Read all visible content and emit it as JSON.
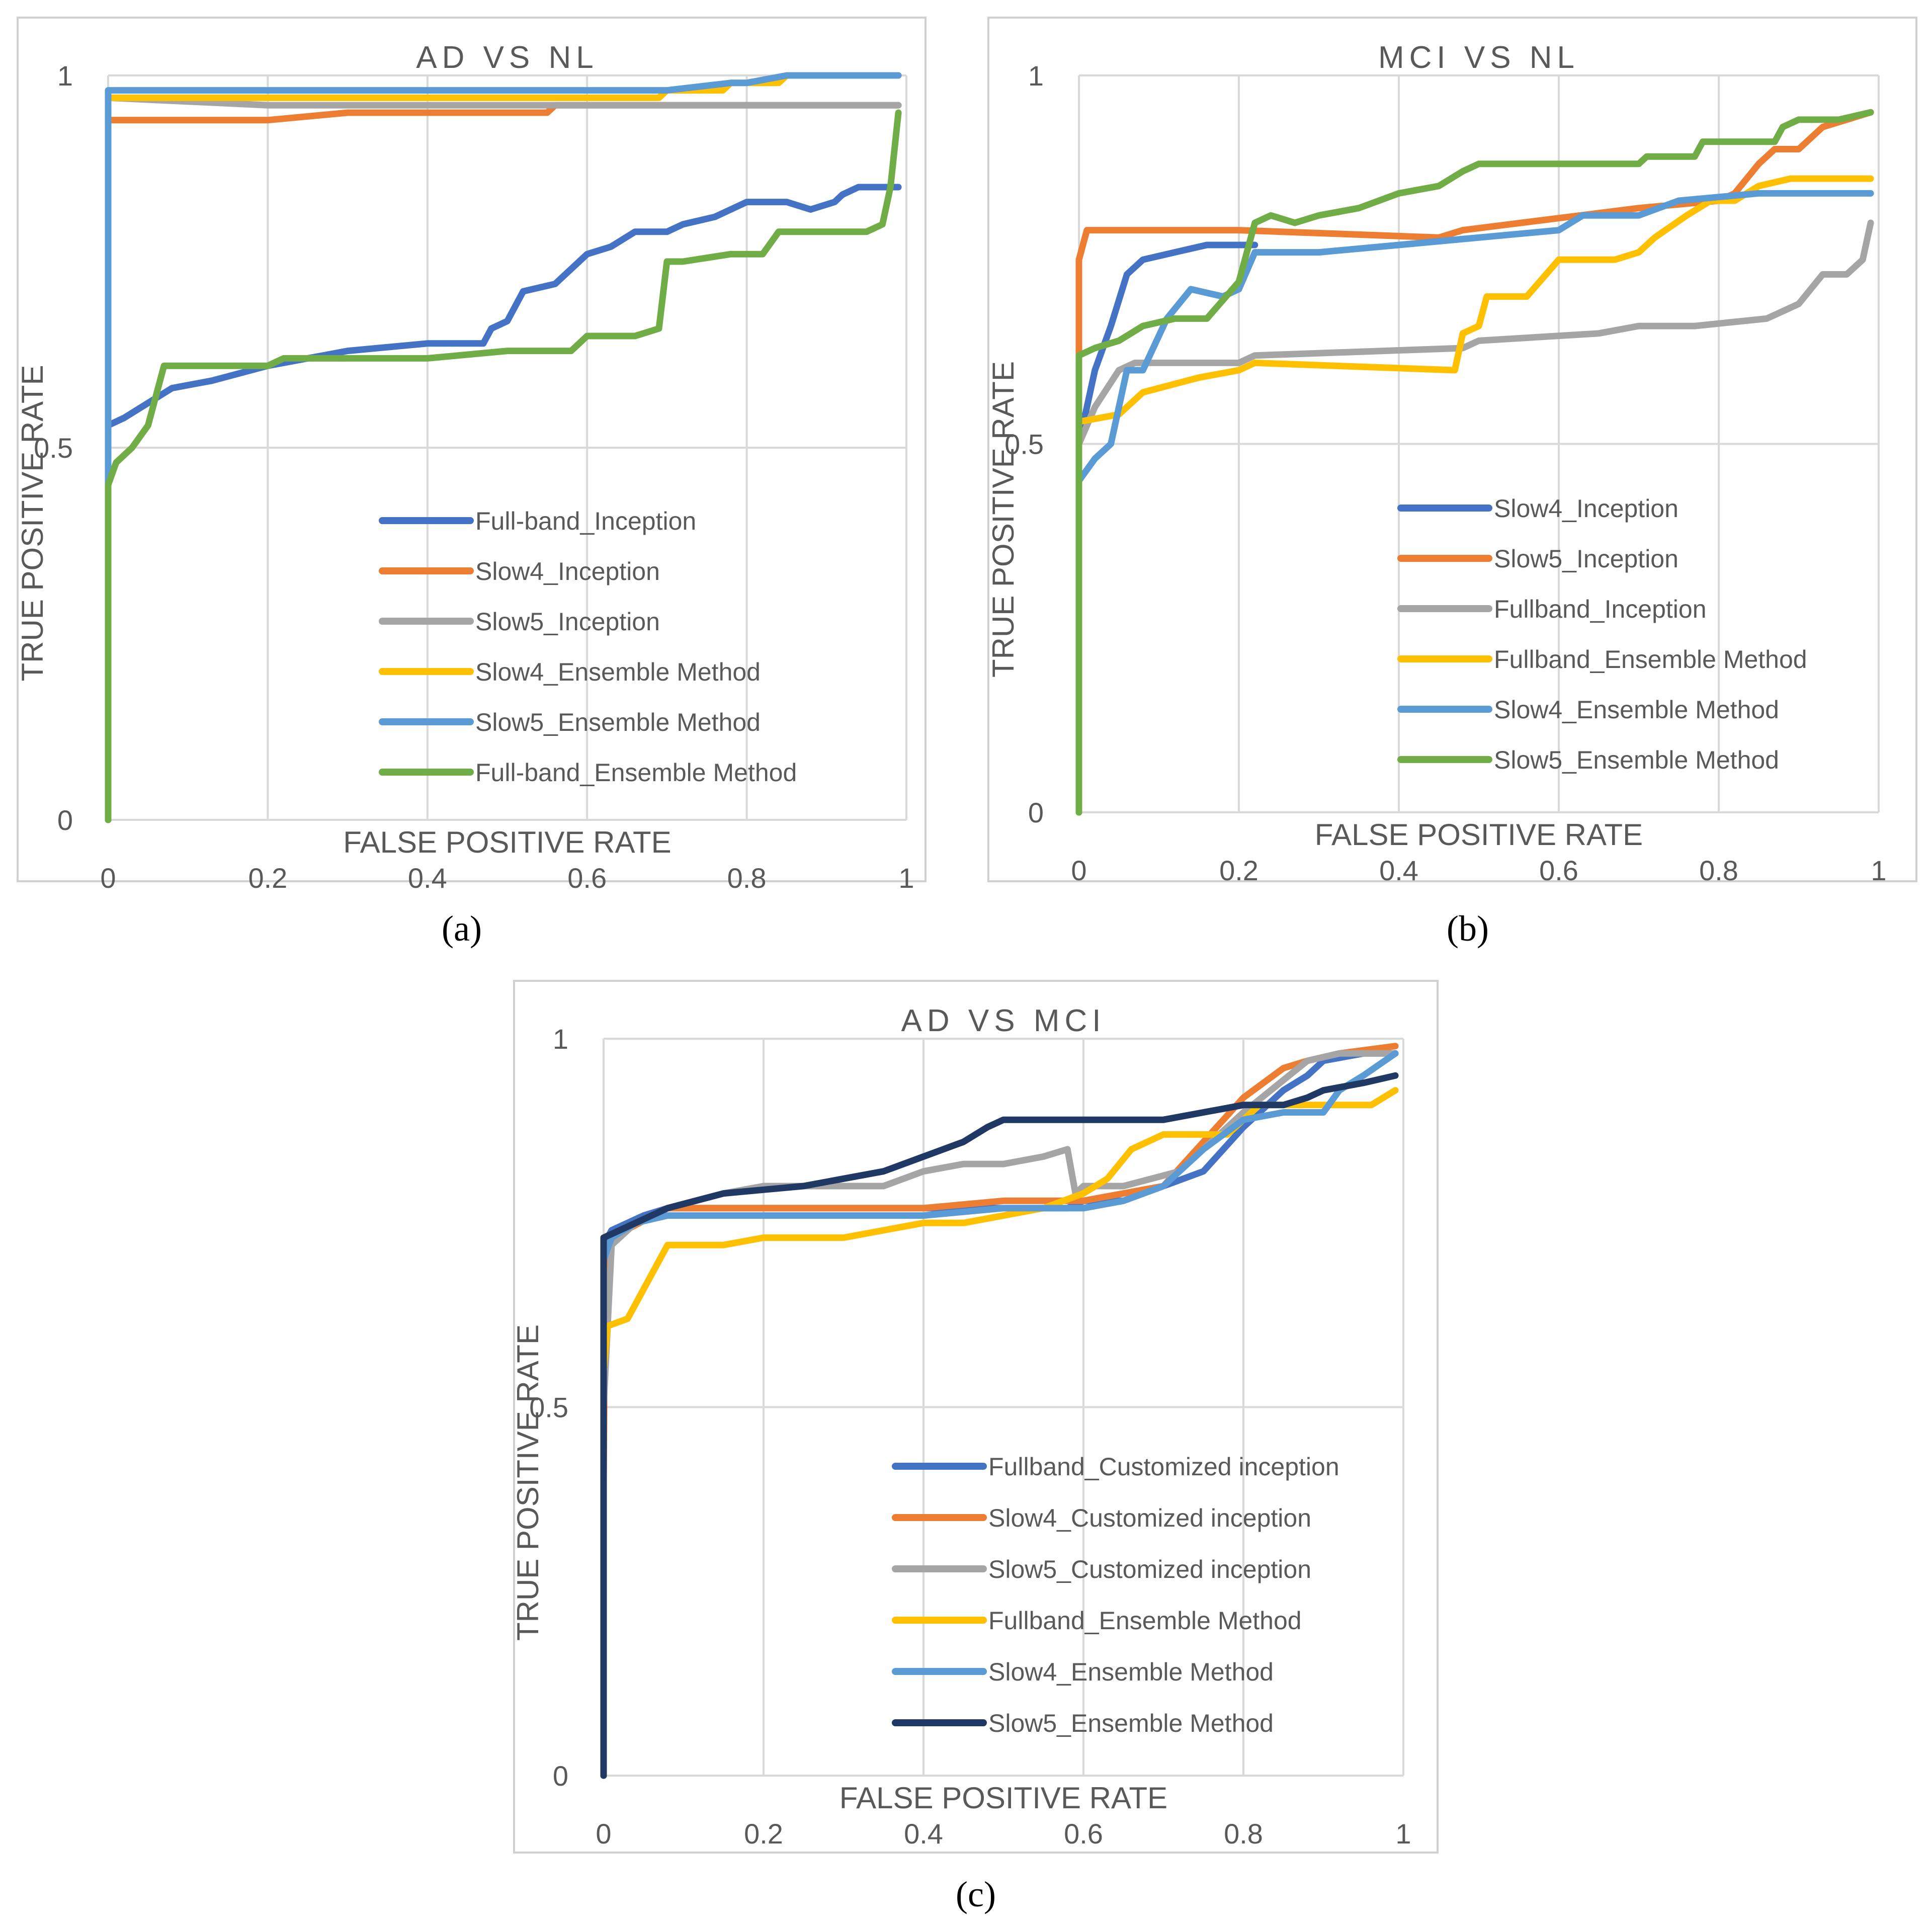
{
  "colors": {
    "frame": "#d0d0d0",
    "grid": "#d9d9d9",
    "text": "#595959",
    "caption": "#000000"
  },
  "chart_data": [
    {
      "panel_id": "a",
      "caption": "(a)",
      "type": "line",
      "title": "AD VS NL",
      "xlabel": "FALSE POSITIVE RATE",
      "ylabel": "TRUE POSITIVE RATE",
      "xlim": [
        0,
        1
      ],
      "ylim": [
        0,
        1
      ],
      "xticks": [
        "0",
        "0.2",
        "0.4",
        "0.6",
        "0.8",
        "1"
      ],
      "yticks": [
        "0",
        "0.5",
        "1"
      ],
      "legend_position": "bottom-right",
      "series": [
        {
          "name": "Full-band_Inception",
          "color": "#4472c4",
          "x": [
            0,
            0,
            0.02,
            0.05,
            0.08,
            0.13,
            0.2,
            0.3,
            0.4,
            0.47,
            0.48,
            0.5,
            0.52,
            0.56,
            0.58,
            0.6,
            0.63,
            0.66,
            0.7,
            0.72,
            0.76,
            0.78,
            0.8,
            0.85,
            0.88,
            0.91,
            0.92,
            0.94,
            0.97,
            0.99
          ],
          "y": [
            0,
            0.53,
            0.54,
            0.56,
            0.58,
            0.59,
            0.61,
            0.63,
            0.64,
            0.64,
            0.66,
            0.67,
            0.71,
            0.72,
            0.74,
            0.76,
            0.77,
            0.79,
            0.79,
            0.8,
            0.81,
            0.82,
            0.83,
            0.83,
            0.82,
            0.83,
            0.84,
            0.85,
            0.85,
            0.85
          ]
        },
        {
          "name": "Slow4_Inception",
          "color": "#ed7d31",
          "x": [
            0,
            0,
            0.2,
            0.3,
            0.55,
            0.56,
            0.6,
            0.99
          ],
          "y": [
            0,
            0.94,
            0.94,
            0.95,
            0.95,
            0.96,
            0.96,
            0.96
          ]
        },
        {
          "name": "Slow5_Inception",
          "color": "#a5a5a5",
          "x": [
            0,
            0,
            0.2,
            0.55,
            0.57,
            0.99
          ],
          "y": [
            0,
            0.97,
            0.96,
            0.96,
            0.96,
            0.96
          ]
        },
        {
          "name": "Slow4_Ensemble Method",
          "color": "#ffc000",
          "x": [
            0,
            0,
            0.5,
            0.69,
            0.7,
            0.77,
            0.78,
            0.84,
            0.85,
            0.99
          ],
          "y": [
            0,
            0.97,
            0.97,
            0.97,
            0.98,
            0.98,
            0.99,
            0.99,
            1,
            1
          ]
        },
        {
          "name": "Slow5_Ensemble Method",
          "color": "#5b9bd5",
          "x": [
            0,
            0,
            0.55,
            0.7,
            0.78,
            0.8,
            0.85,
            0.99
          ],
          "y": [
            0,
            0.98,
            0.98,
            0.98,
            0.99,
            0.99,
            1,
            1
          ]
        },
        {
          "name": "Full-band_Ensemble Method",
          "color": "#70ad47",
          "x": [
            0,
            0,
            0.01,
            0.03,
            0.05,
            0.06,
            0.07,
            0.2,
            0.22,
            0.3,
            0.4,
            0.5,
            0.53,
            0.58,
            0.6,
            0.66,
            0.69,
            0.7,
            0.72,
            0.78,
            0.82,
            0.84,
            0.9,
            0.95,
            0.97,
            0.98,
            0.99
          ],
          "y": [
            0,
            0.45,
            0.48,
            0.5,
            0.53,
            0.57,
            0.61,
            0.61,
            0.62,
            0.62,
            0.62,
            0.63,
            0.63,
            0.63,
            0.65,
            0.65,
            0.66,
            0.75,
            0.75,
            0.76,
            0.76,
            0.79,
            0.79,
            0.79,
            0.8,
            0.85,
            0.95
          ]
        }
      ]
    },
    {
      "panel_id": "b",
      "caption": "(b)",
      "type": "line",
      "title": "MCI VS NL",
      "xlabel": "FALSE POSITIVE RATE",
      "ylabel": "TRUE POSITIVE RATE",
      "xlim": [
        0,
        1
      ],
      "ylim": [
        0,
        1
      ],
      "xticks": [
        "0",
        "0.2",
        "0.4",
        "0.6",
        "0.8",
        "1"
      ],
      "yticks": [
        "0",
        "0.5",
        "1"
      ],
      "legend_position": "bottom-right",
      "series": [
        {
          "name": "Slow4_Inception",
          "color": "#4472c4",
          "x": [
            0,
            0,
            0.02,
            0.04,
            0.06,
            0.08,
            0.12,
            0.16,
            0.2,
            0.22
          ],
          "y": [
            0,
            0.5,
            0.6,
            0.66,
            0.73,
            0.75,
            0.76,
            0.77,
            0.77,
            0.77
          ]
        },
        {
          "name": "Slow5_Inception",
          "color": "#ed7d31",
          "x": [
            0,
            0,
            0.01,
            0.05,
            0.2,
            0.45,
            0.48,
            0.7,
            0.8,
            0.82,
            0.85,
            0.87,
            0.9,
            0.93,
            0.96,
            0.99
          ],
          "y": [
            0,
            0.75,
            0.79,
            0.79,
            0.79,
            0.78,
            0.79,
            0.82,
            0.83,
            0.84,
            0.88,
            0.9,
            0.9,
            0.93,
            0.94,
            0.95
          ]
        },
        {
          "name": "Fullband_Inception",
          "color": "#a5a5a5",
          "x": [
            0,
            0,
            0.02,
            0.05,
            0.07,
            0.2,
            0.22,
            0.48,
            0.5,
            0.65,
            0.7,
            0.77,
            0.86,
            0.88,
            0.9,
            0.93,
            0.96,
            0.98,
            0.99
          ],
          "y": [
            0,
            0.5,
            0.55,
            0.6,
            0.61,
            0.61,
            0.62,
            0.63,
            0.64,
            0.65,
            0.66,
            0.66,
            0.67,
            0.68,
            0.69,
            0.73,
            0.73,
            0.75,
            0.8
          ]
        },
        {
          "name": "Fullband_Ensemble Method",
          "color": "#ffc000",
          "x": [
            0,
            0,
            0.05,
            0.08,
            0.15,
            0.2,
            0.22,
            0.47,
            0.48,
            0.5,
            0.51,
            0.54,
            0.56,
            0.6,
            0.63,
            0.67,
            0.7,
            0.72,
            0.76,
            0.79,
            0.82,
            0.85,
            0.89,
            0.99
          ],
          "y": [
            0,
            0.53,
            0.54,
            0.57,
            0.59,
            0.6,
            0.61,
            0.6,
            0.65,
            0.66,
            0.7,
            0.7,
            0.7,
            0.75,
            0.75,
            0.75,
            0.76,
            0.78,
            0.81,
            0.83,
            0.83,
            0.85,
            0.86,
            0.86
          ]
        },
        {
          "name": "Slow4_Ensemble Method",
          "color": "#5b9bd5",
          "x": [
            0,
            0,
            0.02,
            0.04,
            0.06,
            0.08,
            0.11,
            0.14,
            0.18,
            0.2,
            0.22,
            0.3,
            0.4,
            0.5,
            0.6,
            0.63,
            0.7,
            0.75,
            0.85,
            0.99
          ],
          "y": [
            0,
            0.45,
            0.48,
            0.5,
            0.6,
            0.6,
            0.67,
            0.71,
            0.7,
            0.71,
            0.76,
            0.76,
            0.77,
            0.78,
            0.79,
            0.81,
            0.81,
            0.83,
            0.84,
            0.84
          ]
        },
        {
          "name": "Slow5_Ensemble Method",
          "color": "#70ad47",
          "x": [
            0,
            0,
            0.02,
            0.05,
            0.08,
            0.12,
            0.16,
            0.2,
            0.22,
            0.24,
            0.27,
            0.3,
            0.35,
            0.4,
            0.45,
            0.48,
            0.5,
            0.7,
            0.71,
            0.77,
            0.78,
            0.87,
            0.88,
            0.9,
            0.95,
            0.99
          ],
          "y": [
            0,
            0.62,
            0.63,
            0.64,
            0.66,
            0.67,
            0.67,
            0.72,
            0.8,
            0.81,
            0.8,
            0.81,
            0.82,
            0.84,
            0.85,
            0.87,
            0.88,
            0.88,
            0.89,
            0.89,
            0.91,
            0.91,
            0.93,
            0.94,
            0.94,
            0.95
          ]
        }
      ]
    },
    {
      "panel_id": "c",
      "caption": "(c)",
      "type": "line",
      "title": "AD VS MCI",
      "xlabel": "FALSE POSITIVE RATE",
      "ylabel": "TRUE POSITIVE RATE",
      "xlim": [
        0,
        1
      ],
      "ylim": [
        0,
        1
      ],
      "xticks": [
        "0",
        "0.2",
        "0.4",
        "0.6",
        "0.8",
        "1"
      ],
      "yticks": [
        "0",
        "0.5",
        "1"
      ],
      "legend_position": "bottom-right",
      "series": [
        {
          "name": "Fullband_Customized inception",
          "color": "#4472c4",
          "x": [
            0,
            0,
            0.01,
            0.03,
            0.05,
            0.08,
            0.1,
            0.2,
            0.4,
            0.55,
            0.58,
            0.6,
            0.65,
            0.7,
            0.75,
            0.8,
            0.85,
            0.88,
            0.9,
            0.95,
            0.99
          ],
          "y": [
            0,
            0.72,
            0.74,
            0.75,
            0.76,
            0.77,
            0.77,
            0.77,
            0.77,
            0.77,
            0.77,
            0.78,
            0.78,
            0.8,
            0.82,
            0.88,
            0.93,
            0.95,
            0.97,
            0.98,
            0.98
          ]
        },
        {
          "name": "Slow4_Customized inception",
          "color": "#ed7d31",
          "x": [
            0,
            0,
            0.002,
            0.01,
            0.08,
            0.2,
            0.3,
            0.4,
            0.5,
            0.6,
            0.65,
            0.7,
            0.75,
            0.8,
            0.85,
            0.88,
            0.92,
            0.99
          ],
          "y": [
            0,
            0.4,
            0.7,
            0.73,
            0.77,
            0.77,
            0.77,
            0.77,
            0.78,
            0.78,
            0.79,
            0.8,
            0.86,
            0.92,
            0.96,
            0.97,
            0.98,
            0.99
          ]
        },
        {
          "name": "Slow5_Customized inception",
          "color": "#a5a5a5",
          "x": [
            0,
            0,
            0.01,
            0.04,
            0.08,
            0.15,
            0.2,
            0.35,
            0.4,
            0.45,
            0.5,
            0.55,
            0.58,
            0.59,
            0.6,
            0.65,
            0.72,
            0.8,
            0.88,
            0.92,
            0.99
          ],
          "y": [
            0,
            0.5,
            0.72,
            0.75,
            0.77,
            0.79,
            0.8,
            0.8,
            0.82,
            0.83,
            0.83,
            0.84,
            0.85,
            0.79,
            0.8,
            0.8,
            0.82,
            0.9,
            0.97,
            0.98,
            0.98
          ]
        },
        {
          "name": "Fullband_Ensemble Method",
          "color": "#ffc000",
          "x": [
            0,
            0,
            0.005,
            0.03,
            0.05,
            0.08,
            0.15,
            0.2,
            0.3,
            0.4,
            0.45,
            0.5,
            0.55,
            0.6,
            0.63,
            0.66,
            0.7,
            0.78,
            0.82,
            0.9,
            0.92,
            0.96,
            0.99
          ],
          "y": [
            0,
            0.55,
            0.61,
            0.62,
            0.66,
            0.72,
            0.72,
            0.73,
            0.73,
            0.75,
            0.75,
            0.76,
            0.77,
            0.79,
            0.81,
            0.85,
            0.87,
            0.87,
            0.91,
            0.91,
            0.91,
            0.91,
            0.93
          ]
        },
        {
          "name": "Slow4_Ensemble Method",
          "color": "#5b9bd5",
          "x": [
            0,
            0,
            0.01,
            0.04,
            0.08,
            0.15,
            0.3,
            0.4,
            0.5,
            0.6,
            0.65,
            0.7,
            0.75,
            0.8,
            0.85,
            0.9,
            0.92,
            0.95,
            0.99
          ],
          "y": [
            0,
            0.7,
            0.73,
            0.75,
            0.76,
            0.76,
            0.76,
            0.76,
            0.77,
            0.77,
            0.78,
            0.8,
            0.85,
            0.89,
            0.9,
            0.9,
            0.93,
            0.95,
            0.98
          ]
        },
        {
          "name": "Slow5_Ensemble Method",
          "color": "#203864",
          "x": [
            0,
            0,
            0.04,
            0.08,
            0.15,
            0.25,
            0.3,
            0.35,
            0.4,
            0.45,
            0.48,
            0.5,
            0.6,
            0.7,
            0.75,
            0.8,
            0.85,
            0.88,
            0.9,
            0.95,
            0.99
          ],
          "y": [
            0,
            0.73,
            0.75,
            0.77,
            0.79,
            0.8,
            0.81,
            0.82,
            0.84,
            0.86,
            0.88,
            0.89,
            0.89,
            0.89,
            0.9,
            0.91,
            0.91,
            0.92,
            0.93,
            0.94,
            0.95
          ]
        }
      ]
    }
  ]
}
